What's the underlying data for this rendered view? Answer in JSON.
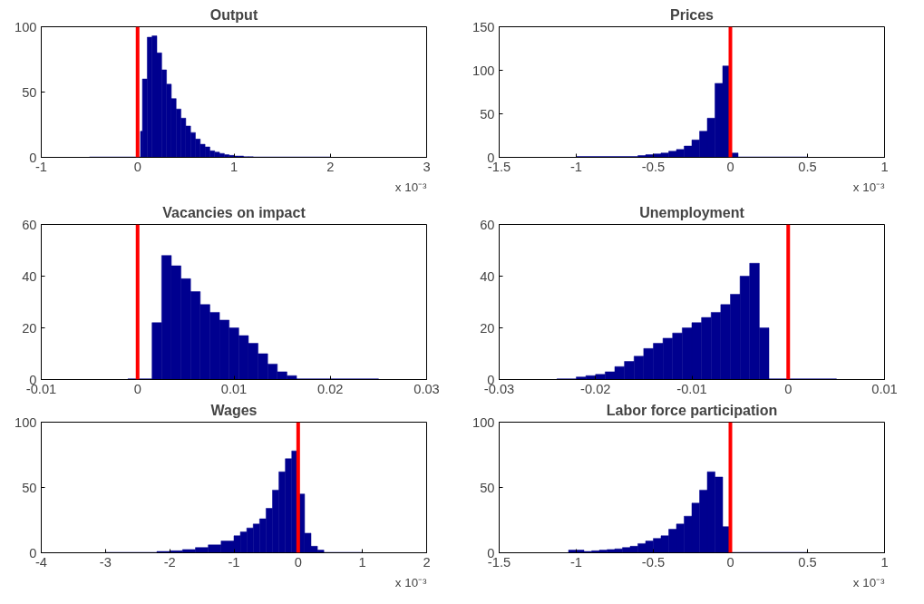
{
  "chart_data": [
    {
      "type": "histogram",
      "title": "Output",
      "color": "#00008f",
      "annotations": [
        "x 10⁻³"
      ],
      "bins": [
        -0.5,
        0.03,
        0.05,
        0.1,
        0.15,
        0.2,
        0.25,
        0.3,
        0.35,
        0.4,
        0.45,
        0.5,
        0.55,
        0.6,
        0.65,
        0.7,
        0.75,
        0.8,
        0.85,
        0.9,
        0.95,
        1.0,
        1.05,
        1.1,
        1.15,
        1.2,
        2.0
      ],
      "values": [
        0.3,
        20,
        60,
        92,
        93,
        80,
        67,
        56,
        45,
        37,
        30,
        24,
        19,
        14,
        10,
        8,
        5,
        4,
        3,
        2,
        1.5,
        1,
        1,
        0.5,
        0.5,
        0.3
      ],
      "xlim": [
        -1,
        3
      ],
      "xticks": [
        -1,
        0,
        1,
        2,
        3
      ],
      "ylim": [
        0,
        100
      ],
      "yticks": [
        0,
        50,
        100
      ],
      "ref_lines": [
        {
          "axis": "x",
          "value": 0,
          "color": "#ff0000"
        }
      ]
    },
    {
      "type": "histogram",
      "title": "Prices",
      "color": "#00008f",
      "annotations": [
        "x 10⁻³"
      ],
      "bins": [
        -1.0,
        -0.6,
        -0.55,
        -0.5,
        -0.45,
        -0.4,
        -0.35,
        -0.3,
        -0.25,
        -0.2,
        -0.15,
        -0.1,
        -0.05,
        0,
        0.05,
        0.5
      ],
      "values": [
        1,
        2,
        3,
        4,
        5,
        7,
        9,
        13,
        20,
        30,
        45,
        85,
        105,
        5,
        0.5
      ],
      "xlim": [
        -1.5,
        1
      ],
      "xticks": [
        -1.5,
        -1,
        -0.5,
        0,
        0.5,
        1
      ],
      "ylim": [
        0,
        150
      ],
      "yticks": [
        0,
        50,
        100,
        150
      ],
      "ref_lines": [
        {
          "axis": "x",
          "value": 0,
          "color": "#ff0000"
        }
      ]
    },
    {
      "type": "histogram",
      "title": "Vacancies on impact",
      "color": "#00008f",
      "bins": [
        -0.001,
        0.0015,
        0.0025,
        0.0035,
        0.0045,
        0.0055,
        0.0065,
        0.0075,
        0.0085,
        0.0095,
        0.0105,
        0.0115,
        0.0125,
        0.0135,
        0.0145,
        0.0155,
        0.0165,
        0.025
      ],
      "values": [
        0.3,
        22,
        48,
        44,
        39,
        34,
        29,
        26,
        23,
        20,
        17,
        14,
        10,
        6,
        3,
        1.5,
        0.3
      ],
      "xlim": [
        -0.01,
        0.03
      ],
      "xticks": [
        -0.01,
        0,
        0.01,
        0.02,
        0.03
      ],
      "ylim": [
        0,
        60
      ],
      "yticks": [
        0,
        20,
        40,
        60
      ],
      "ref_lines": [
        {
          "axis": "x",
          "value": 0,
          "color": "#ff0000"
        }
      ]
    },
    {
      "type": "histogram",
      "title": "Unemployment",
      "color": "#00008f",
      "bins": [
        -0.024,
        -0.022,
        -0.021,
        -0.02,
        -0.019,
        -0.018,
        -0.017,
        -0.016,
        -0.015,
        -0.014,
        -0.013,
        -0.012,
        -0.011,
        -0.01,
        -0.009,
        -0.008,
        -0.007,
        -0.006,
        -0.005,
        -0.004,
        -0.003,
        -0.002,
        0.005
      ],
      "values": [
        0.3,
        1,
        1.5,
        2,
        3,
        5,
        7,
        9,
        12,
        14,
        16,
        18,
        20,
        22,
        24,
        26,
        29,
        33,
        40,
        45,
        20,
        0.3
      ],
      "xlim": [
        -0.03,
        0.01
      ],
      "xticks": [
        -0.03,
        -0.02,
        -0.01,
        0,
        0.01
      ],
      "ylim": [
        0,
        60
      ],
      "yticks": [
        0,
        20,
        40,
        60
      ],
      "ref_lines": [
        {
          "axis": "x",
          "value": 0,
          "color": "#ff0000"
        }
      ]
    },
    {
      "type": "histogram",
      "title": "Wages",
      "color": "#00008f",
      "annotations": [
        "x 10⁻³"
      ],
      "bins": [
        -3,
        -2.2,
        -2,
        -1.8,
        -1.6,
        -1.4,
        -1.2,
        -1,
        -0.9,
        -0.8,
        -0.7,
        -0.6,
        -0.5,
        -0.4,
        -0.3,
        -0.2,
        -0.1,
        0,
        0.1,
        0.2,
        0.3,
        0.4,
        1
      ],
      "values": [
        0.3,
        1,
        1.5,
        2.5,
        4,
        6,
        9,
        13,
        16,
        19,
        22,
        26,
        34,
        48,
        62,
        72,
        78,
        45,
        15,
        5,
        2,
        0.3
      ],
      "xlim": [
        -4,
        2
      ],
      "xticks": [
        -4,
        -3,
        -2,
        -1,
        0,
        1,
        2
      ],
      "ylim": [
        0,
        100
      ],
      "yticks": [
        0,
        50,
        100
      ],
      "ref_lines": [
        {
          "axis": "x",
          "value": 0,
          "color": "#ff0000"
        }
      ]
    },
    {
      "type": "histogram",
      "title": "Labor force participation",
      "color": "#00008f",
      "annotations": [
        "x 10⁻³"
      ],
      "bins": [
        -1.05,
        -0.95,
        -0.9,
        -0.85,
        -0.8,
        -0.75,
        -0.7,
        -0.65,
        -0.6,
        -0.55,
        -0.5,
        -0.45,
        -0.4,
        -0.35,
        -0.3,
        -0.25,
        -0.2,
        -0.15,
        -0.1,
        -0.05,
        0,
        0.5
      ],
      "values": [
        2,
        1,
        1.5,
        2,
        2.5,
        3,
        4,
        5,
        7,
        9,
        11,
        13,
        18,
        22,
        28,
        38,
        48,
        62,
        58,
        20,
        0.3
      ],
      "xlim": [
        -1.5,
        1
      ],
      "xticks": [
        -1.5,
        -1,
        -0.5,
        0,
        0.5,
        1
      ],
      "ylim": [
        0,
        100
      ],
      "yticks": [
        0,
        50,
        100
      ],
      "ref_lines": [
        {
          "axis": "x",
          "value": 0,
          "color": "#ff0000"
        }
      ]
    }
  ]
}
